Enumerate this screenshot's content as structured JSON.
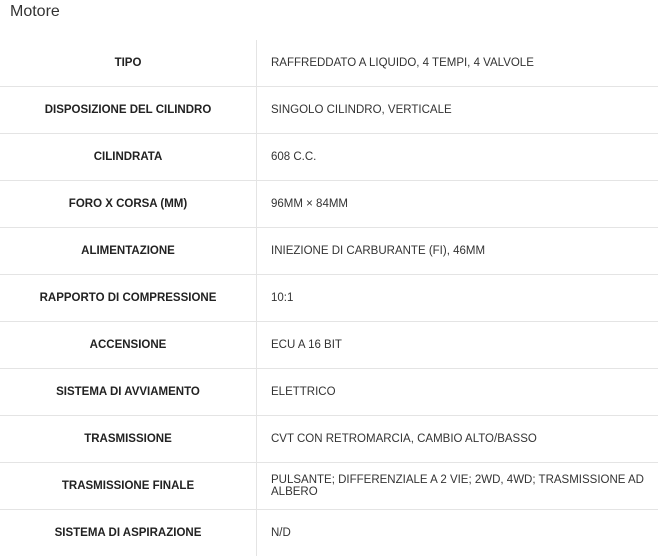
{
  "header": {
    "title": "Motore"
  },
  "table": {
    "rows": [
      [
        "TIPO",
        "RAFFREDDATO A LIQUIDO, 4 TEMPI, 4 VALVOLE"
      ],
      [
        "DISPOSIZIONE DEL CILINDRO",
        "SINGOLO CILINDRO, VERTICALE"
      ],
      [
        "CILINDRATA",
        "608 C.C."
      ],
      [
        "FORO X CORSA (MM)",
        "96MM × 84MM"
      ],
      [
        "ALIMENTAZIONE",
        "INIEZIONE DI CARBURANTE (FI), 46MM"
      ],
      [
        "RAPPORTO DI COMPRESSIONE",
        "10:1"
      ],
      [
        "ACCENSIONE",
        "ECU A 16 BIT"
      ],
      [
        "SISTEMA DI AVVIAMENTO",
        "ELETTRICO"
      ],
      [
        "TRASMISSIONE",
        "CVT CON RETROMARCIA, CAMBIO ALTO/BASSO"
      ],
      [
        "TRASMISSIONE FINALE",
        "PULSANTE; DIFFERENZIALE A 2 VIE; 2WD, 4WD; TRASMISSIONE AD ALBERO"
      ],
      [
        "SISTEMA DI ASPIRAZIONE",
        "N/D"
      ]
    ]
  }
}
